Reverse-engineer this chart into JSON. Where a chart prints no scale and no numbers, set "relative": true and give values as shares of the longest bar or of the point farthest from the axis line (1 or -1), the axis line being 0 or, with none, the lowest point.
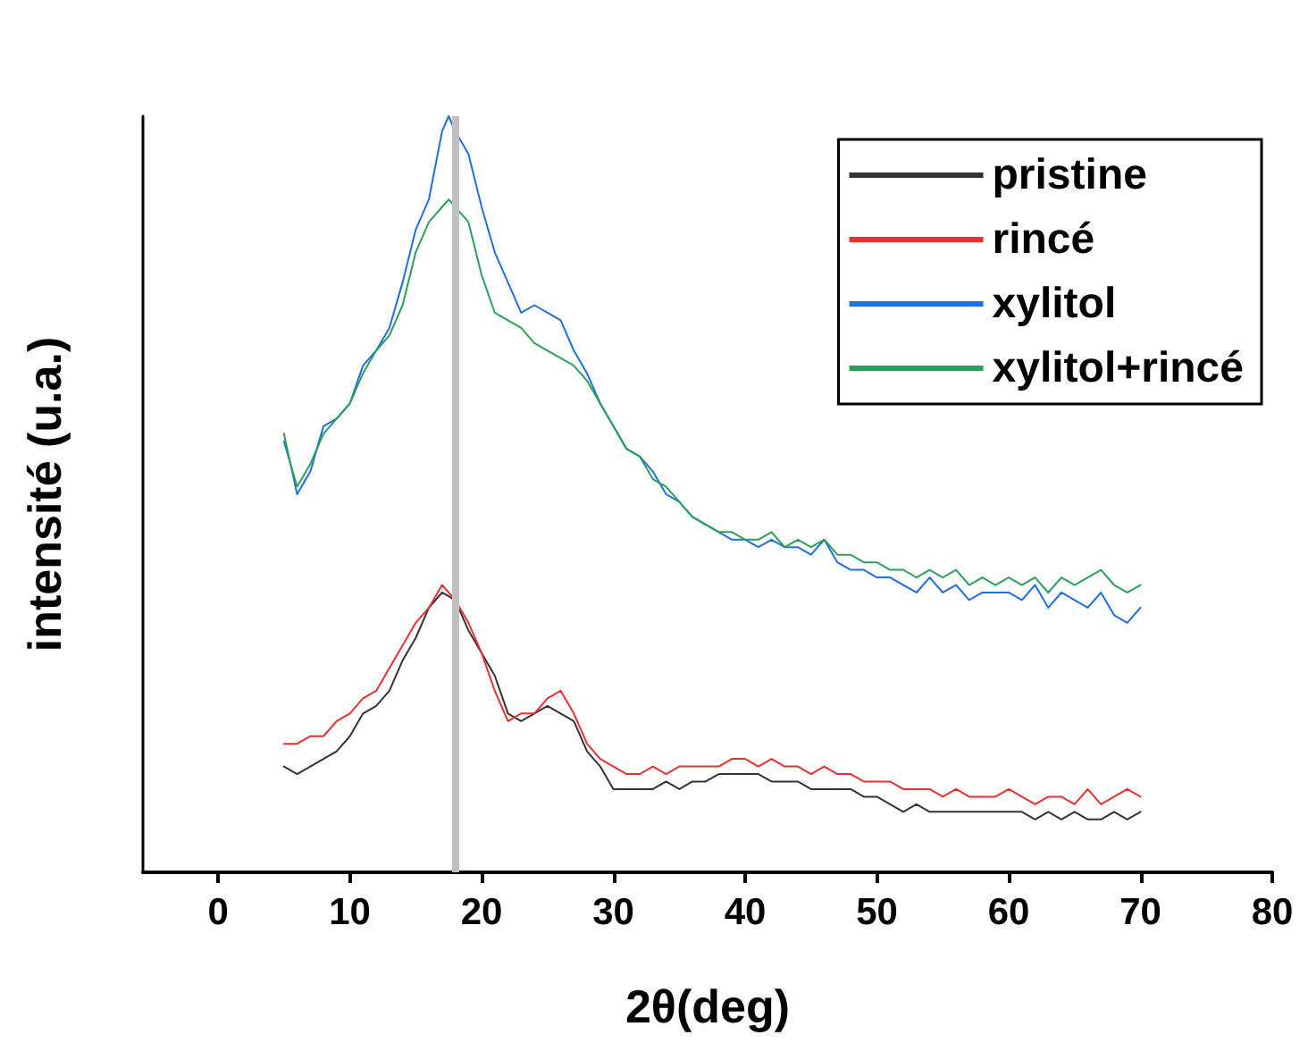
{
  "chart_data": {
    "type": "line",
    "xlabel": "2θ(deg)",
    "ylabel": "intensité (u.a.)",
    "relative": true,
    "xlim": [
      -5.7,
      80
    ],
    "xticks": [
      0,
      10,
      20,
      30,
      40,
      50,
      60,
      70,
      80
    ],
    "legend": "top right",
    "grid": false,
    "marker": "none",
    "line_style": "solid",
    "tick_labels": "x",
    "ref_lines": [
      {
        "axis": "x",
        "value": 18,
        "color": "#c0c0c0"
      }
    ],
    "series": [
      {
        "name": "pristine",
        "color": "#333333",
        "x": [
          5,
          6,
          7,
          8,
          9,
          10,
          11,
          12,
          13,
          14,
          15,
          16,
          17,
          18,
          19,
          20,
          21,
          22,
          23,
          24,
          25,
          26,
          27,
          28,
          29,
          30,
          31,
          32,
          33,
          34,
          35,
          36,
          37,
          38,
          39,
          40,
          41,
          42,
          43,
          44,
          45,
          46,
          47,
          48,
          49,
          50,
          51,
          52,
          53,
          54,
          55,
          56,
          57,
          58,
          59,
          60,
          61,
          62,
          63,
          64,
          65,
          66,
          67,
          68,
          69,
          70
        ],
        "values": [
          0.14,
          0.13,
          0.14,
          0.15,
          0.16,
          0.18,
          0.21,
          0.22,
          0.24,
          0.28,
          0.31,
          0.35,
          0.37,
          0.36,
          0.32,
          0.29,
          0.26,
          0.21,
          0.2,
          0.21,
          0.22,
          0.21,
          0.2,
          0.16,
          0.14,
          0.11,
          0.11,
          0.11,
          0.11,
          0.12,
          0.11,
          0.12,
          0.12,
          0.13,
          0.13,
          0.13,
          0.13,
          0.12,
          0.12,
          0.12,
          0.11,
          0.11,
          0.11,
          0.11,
          0.1,
          0.1,
          0.09,
          0.08,
          0.09,
          0.08,
          0.08,
          0.08,
          0.08,
          0.08,
          0.08,
          0.08,
          0.08,
          0.07,
          0.08,
          0.07,
          0.08,
          0.07,
          0.07,
          0.08,
          0.07,
          0.08
        ]
      },
      {
        "name": "rincé",
        "color": "#e83030",
        "x": [
          5,
          6,
          7,
          8,
          9,
          10,
          11,
          12,
          13,
          14,
          15,
          16,
          17,
          18,
          19,
          20,
          21,
          22,
          23,
          24,
          25,
          26,
          27,
          28,
          29,
          30,
          31,
          32,
          33,
          34,
          35,
          36,
          37,
          38,
          39,
          40,
          41,
          42,
          43,
          44,
          45,
          46,
          47,
          48,
          49,
          50,
          51,
          52,
          53,
          54,
          55,
          56,
          57,
          58,
          59,
          60,
          61,
          62,
          63,
          64,
          65,
          66,
          67,
          68,
          69,
          70
        ],
        "values": [
          0.17,
          0.17,
          0.18,
          0.18,
          0.2,
          0.21,
          0.23,
          0.24,
          0.27,
          0.3,
          0.33,
          0.35,
          0.38,
          0.36,
          0.33,
          0.29,
          0.24,
          0.2,
          0.21,
          0.21,
          0.23,
          0.24,
          0.21,
          0.17,
          0.15,
          0.14,
          0.13,
          0.13,
          0.14,
          0.13,
          0.14,
          0.14,
          0.14,
          0.14,
          0.15,
          0.15,
          0.14,
          0.15,
          0.14,
          0.14,
          0.13,
          0.14,
          0.13,
          0.13,
          0.12,
          0.12,
          0.12,
          0.11,
          0.11,
          0.11,
          0.1,
          0.11,
          0.1,
          0.1,
          0.1,
          0.11,
          0.1,
          0.09,
          0.1,
          0.1,
          0.09,
          0.11,
          0.09,
          0.1,
          0.11,
          0.1
        ]
      },
      {
        "name": "xylitol",
        "color": "#1f6fe0",
        "x": [
          5,
          5.5,
          6,
          7,
          8,
          9,
          10,
          11,
          12,
          13,
          14,
          15,
          16,
          17,
          17.5,
          18,
          19,
          20,
          21,
          22,
          23,
          24,
          25,
          26,
          27,
          28,
          29,
          30,
          31,
          32,
          33,
          34,
          35,
          36,
          37,
          38,
          39,
          40,
          41,
          42,
          43,
          44,
          45,
          46,
          47,
          48,
          49,
          50,
          51,
          52,
          53,
          54,
          55,
          56,
          57,
          58,
          59,
          60,
          61,
          62,
          63,
          64,
          65,
          66,
          67,
          68,
          69,
          70
        ],
        "values": [
          0.57,
          0.54,
          0.5,
          0.53,
          0.59,
          0.6,
          0.62,
          0.67,
          0.69,
          0.72,
          0.78,
          0.85,
          0.89,
          0.98,
          1.0,
          0.98,
          0.95,
          0.88,
          0.82,
          0.78,
          0.74,
          0.75,
          0.74,
          0.73,
          0.69,
          0.66,
          0.62,
          0.59,
          0.56,
          0.55,
          0.53,
          0.5,
          0.49,
          0.47,
          0.46,
          0.45,
          0.44,
          0.44,
          0.43,
          0.44,
          0.43,
          0.43,
          0.42,
          0.44,
          0.41,
          0.4,
          0.4,
          0.39,
          0.39,
          0.38,
          0.37,
          0.39,
          0.37,
          0.38,
          0.36,
          0.37,
          0.37,
          0.37,
          0.36,
          0.38,
          0.35,
          0.37,
          0.36,
          0.35,
          0.37,
          0.34,
          0.33,
          0.35
        ]
      },
      {
        "name": "xylitol+rincé",
        "color": "#2ca05a",
        "x": [
          5,
          5.5,
          6,
          7,
          8,
          9,
          10,
          11,
          12,
          13,
          14,
          15,
          16,
          17,
          17.5,
          18,
          19,
          20,
          21,
          22,
          23,
          24,
          25,
          26,
          27,
          28,
          29,
          30,
          31,
          32,
          33,
          34,
          35,
          36,
          37,
          38,
          39,
          40,
          41,
          42,
          43,
          44,
          45,
          46,
          47,
          48,
          49,
          50,
          51,
          52,
          53,
          54,
          55,
          56,
          57,
          58,
          59,
          60,
          61,
          62,
          63,
          64,
          65,
          66,
          67,
          68,
          69,
          70
        ],
        "values": [
          0.58,
          0.54,
          0.51,
          0.54,
          0.58,
          0.6,
          0.62,
          0.66,
          0.69,
          0.71,
          0.75,
          0.82,
          0.86,
          0.88,
          0.89,
          0.88,
          0.86,
          0.79,
          0.74,
          0.73,
          0.72,
          0.7,
          0.69,
          0.68,
          0.67,
          0.65,
          0.62,
          0.59,
          0.56,
          0.55,
          0.52,
          0.51,
          0.49,
          0.47,
          0.46,
          0.45,
          0.45,
          0.44,
          0.44,
          0.45,
          0.43,
          0.44,
          0.43,
          0.44,
          0.42,
          0.42,
          0.41,
          0.41,
          0.4,
          0.4,
          0.39,
          0.4,
          0.39,
          0.4,
          0.38,
          0.39,
          0.38,
          0.39,
          0.38,
          0.39,
          0.37,
          0.39,
          0.38,
          0.39,
          0.4,
          0.38,
          0.37,
          0.38
        ]
      }
    ]
  }
}
